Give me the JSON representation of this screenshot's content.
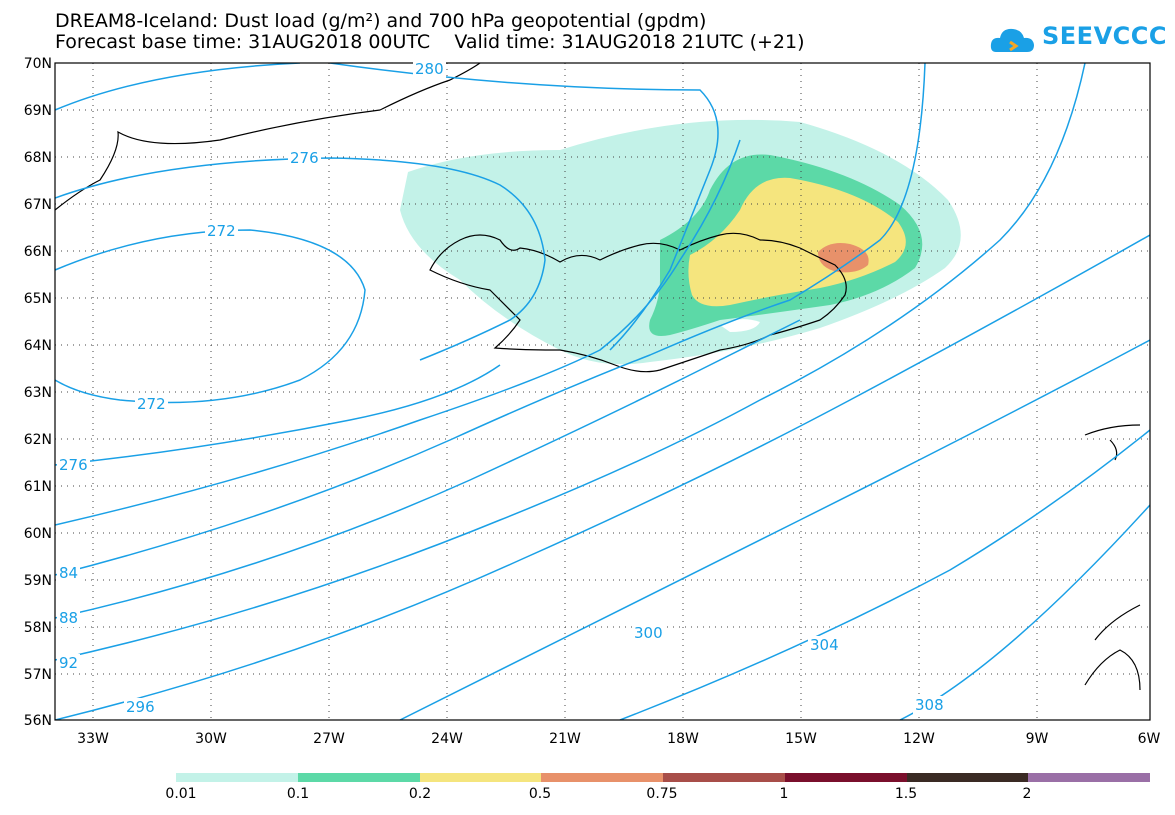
{
  "title": {
    "line1": "DREAM8-Iceland: Dust load (g/m²) and 700 hPa geopotential (gpdm)",
    "line2": "Forecast base time: 31AUG2018 00UTC    Valid time: 31AUG2018 21UTC (+21)"
  },
  "logo": {
    "text": "SEEVCCC",
    "icon": "cloud-icon",
    "color": "#1aa0e6"
  },
  "map": {
    "lat_labels": [
      "70N",
      "69N",
      "68N",
      "67N",
      "66N",
      "65N",
      "64N",
      "63N",
      "62N",
      "61N",
      "60N",
      "59N",
      "58N",
      "57N",
      "56N"
    ],
    "lon_labels": [
      "33W",
      "30W",
      "27W",
      "24W",
      "21W",
      "18W",
      "15W",
      "12W",
      "9W",
      "6W"
    ],
    "contour_labels": {
      "c280": "280",
      "c276a": "276",
      "c272a": "272",
      "c272b": "272",
      "c276b": "276",
      "c284": "84",
      "c288": "88",
      "c292": "92",
      "c296": "296",
      "c300": "300",
      "c304": "304",
      "c308": "308"
    },
    "contour_color": "#1aa0e6",
    "coast_color": "#000000"
  },
  "legend": {
    "labels": [
      "0.01",
      "0.1",
      "0.2",
      "0.5",
      "0.75",
      "1",
      "1.5",
      "2"
    ],
    "colors": [
      "#c3f2e8",
      "#5cd9a7",
      "#f5e57e",
      "#e8916a",
      "#a84e49",
      "#7a0f2c",
      "#3a2a24",
      "#9a6fa6"
    ]
  }
}
